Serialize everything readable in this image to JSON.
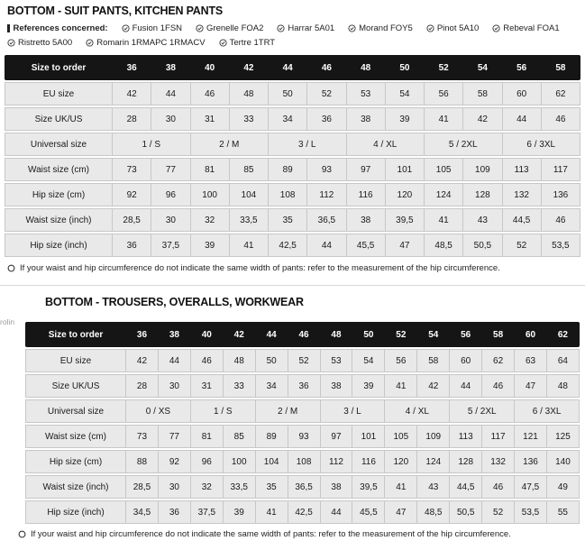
{
  "section1": {
    "title": "BOTTOM - SUIT PANTS, KITCHEN PANTS",
    "references_label": "References concerned:",
    "references": [
      "Fusion 1FSN",
      "Grenelle FOA2",
      "Harrar 5A01",
      "Morand FOY5",
      "Pinot 5A10",
      "Rebeval FOA1",
      "Ristretto 5A00",
      "Romarin 1RMAPC 1RMACV",
      "Tertre 1TRT"
    ],
    "table": {
      "header_label": "Size to order",
      "sizes": [
        "36",
        "38",
        "40",
        "42",
        "44",
        "46",
        "48",
        "50",
        "52",
        "54",
        "56",
        "58"
      ],
      "rows": [
        {
          "label": "EU size",
          "span": 1,
          "values": [
            "42",
            "44",
            "46",
            "48",
            "50",
            "52",
            "53",
            "54",
            "56",
            "58",
            "60",
            "62"
          ]
        },
        {
          "label": "Size UK/US",
          "span": 1,
          "values": [
            "28",
            "30",
            "31",
            "33",
            "34",
            "36",
            "38",
            "39",
            "41",
            "42",
            "44",
            "46"
          ]
        },
        {
          "label": "Universal size",
          "span": 2,
          "values": [
            "1 / S",
            "2 / M",
            "3 / L",
            "4 / XL",
            "5 / 2XL",
            "6 / 3XL"
          ]
        },
        {
          "label": "Waist size (cm)",
          "span": 1,
          "values": [
            "73",
            "77",
            "81",
            "85",
            "89",
            "93",
            "97",
            "101",
            "105",
            "109",
            "113",
            "117"
          ]
        },
        {
          "label": "Hip size (cm)",
          "span": 1,
          "values": [
            "92",
            "96",
            "100",
            "104",
            "108",
            "112",
            "116",
            "120",
            "124",
            "128",
            "132",
            "136"
          ]
        },
        {
          "label": "Waist size (inch)",
          "span": 1,
          "values": [
            "28,5",
            "30",
            "32",
            "33,5",
            "35",
            "36,5",
            "38",
            "39,5",
            "41",
            "43",
            "44,5",
            "46"
          ]
        },
        {
          "label": "Hip size (inch)",
          "span": 1,
          "values": [
            "36",
            "37,5",
            "39",
            "41",
            "42,5",
            "44",
            "45,5",
            "47",
            "48,5",
            "50,5",
            "52",
            "53,5"
          ]
        }
      ]
    },
    "footnote": "If your waist and hip circumference do not indicate the same width of pants: refer to the measurement of the hip circumference."
  },
  "section2": {
    "title": "BOTTOM - TROUSERS, OVERALLS, WORKWEAR",
    "cutoff_text": "rolin",
    "table": {
      "header_label": "Size to order",
      "sizes": [
        "36",
        "38",
        "40",
        "42",
        "44",
        "46",
        "48",
        "50",
        "52",
        "54",
        "56",
        "58",
        "60",
        "62"
      ],
      "rows": [
        {
          "label": "EU size",
          "span": 1,
          "values": [
            "42",
            "44",
            "46",
            "48",
            "50",
            "52",
            "53",
            "54",
            "56",
            "58",
            "60",
            "62",
            "63",
            "64"
          ]
        },
        {
          "label": "Size UK/US",
          "span": 1,
          "values": [
            "28",
            "30",
            "31",
            "33",
            "34",
            "36",
            "38",
            "39",
            "41",
            "42",
            "44",
            "46",
            "47",
            "48"
          ]
        },
        {
          "label": "Universal size",
          "span": 2,
          "values": [
            "0 / XS",
            "1 / S",
            "2 / M",
            "3 / L",
            "4 / XL",
            "5 / 2XL",
            "6 / 3XL"
          ]
        },
        {
          "label": "Waist size (cm)",
          "span": 1,
          "values": [
            "73",
            "77",
            "81",
            "85",
            "89",
            "93",
            "97",
            "101",
            "105",
            "109",
            "113",
            "117",
            "121",
            "125"
          ]
        },
        {
          "label": "Hip size (cm)",
          "span": 1,
          "values": [
            "88",
            "92",
            "96",
            "100",
            "104",
            "108",
            "112",
            "116",
            "120",
            "124",
            "128",
            "132",
            "136",
            "140"
          ]
        },
        {
          "label": "Waist size (inch)",
          "span": 1,
          "values": [
            "28,5",
            "30",
            "32",
            "33,5",
            "35",
            "36,5",
            "38",
            "39,5",
            "41",
            "43",
            "44,5",
            "46",
            "47,5",
            "49"
          ]
        },
        {
          "label": "Hip size (inch)",
          "span": 1,
          "values": [
            "34,5",
            "36",
            "37,5",
            "39",
            "41",
            "42,5",
            "44",
            "45,5",
            "47",
            "48,5",
            "50,5",
            "52",
            "53,5",
            "55"
          ]
        }
      ]
    },
    "footnote": "If your waist and hip circumference do not indicate the same width of pants: refer to the measurement of the hip circumference."
  },
  "colors": {
    "table_header_bg": "#151515",
    "table_cell_bg": "#e9e9e9",
    "table_border": "#c7c7c7",
    "text": "#1a1a1a"
  },
  "icons": {
    "reference_icon": "circle-check",
    "references_prefix_icon": "info-bar",
    "footnote_icon": "circle-outline"
  }
}
